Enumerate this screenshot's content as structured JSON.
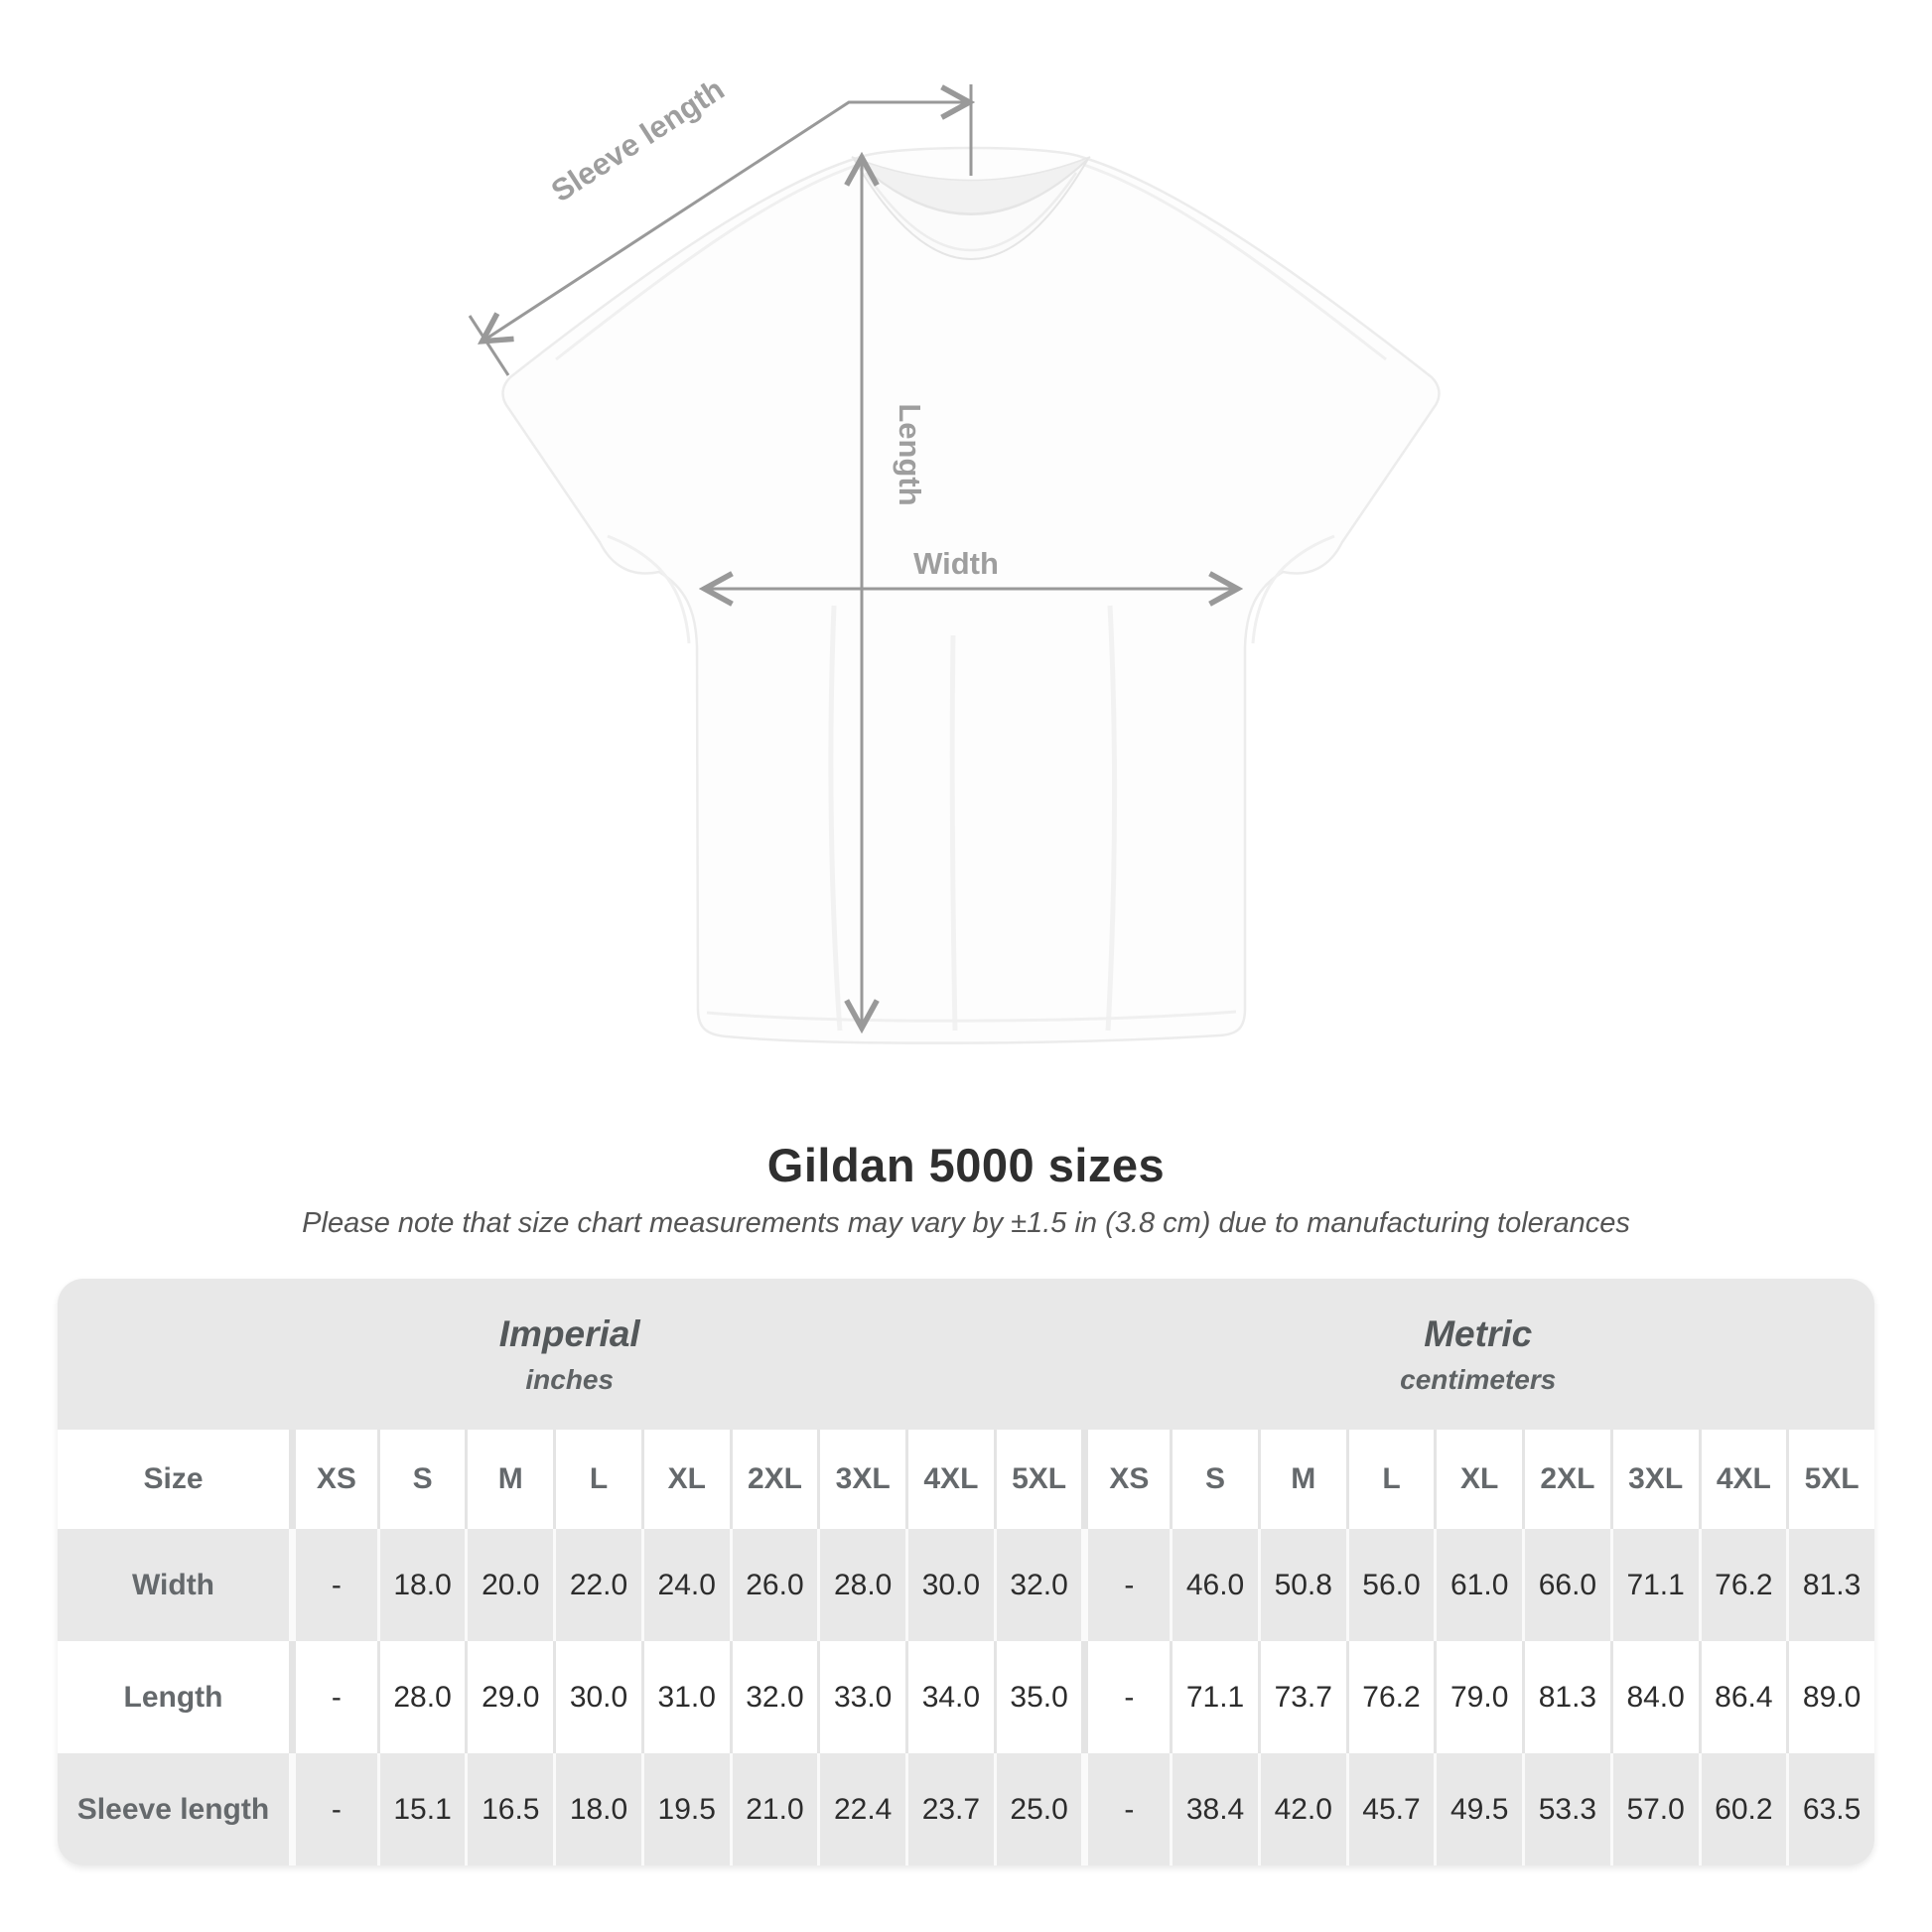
{
  "diagram": {
    "labels": {
      "sleeve_length": "Sleeve length",
      "length": "Length",
      "width": "Width"
    },
    "arrow_color": "#999999",
    "label_color": "#9e9e9e"
  },
  "header": {
    "title": "Gildan 5000 sizes",
    "subtitle": "Please note that size chart measurements may vary by ±1.5 in (3.8 cm) due to manufacturing tolerances"
  },
  "chart_data": {
    "type": "table",
    "title": "Gildan 5000 sizes",
    "note": "Please note that size chart measurements may vary by ±1.5 in (3.8 cm) due to manufacturing tolerances",
    "section_headers": [
      {
        "label": "Imperial",
        "unit": "inches"
      },
      {
        "label": "Metric",
        "unit": "centimeters"
      }
    ],
    "size_column_label": "Size",
    "sizes": [
      "XS",
      "S",
      "M",
      "L",
      "XL",
      "2XL",
      "3XL",
      "4XL",
      "5XL"
    ],
    "rows": [
      {
        "label": "Width",
        "imperial": [
          "-",
          "18.0",
          "20.0",
          "22.0",
          "24.0",
          "26.0",
          "28.0",
          "30.0",
          "32.0"
        ],
        "metric": [
          "-",
          "46.0",
          "50.8",
          "56.0",
          "61.0",
          "66.0",
          "71.1",
          "76.2",
          "81.3"
        ]
      },
      {
        "label": "Length",
        "imperial": [
          "-",
          "28.0",
          "29.0",
          "30.0",
          "31.0",
          "32.0",
          "33.0",
          "34.0",
          "35.0"
        ],
        "metric": [
          "-",
          "71.1",
          "73.7",
          "76.2",
          "79.0",
          "81.3",
          "84.0",
          "86.4",
          "89.0"
        ]
      },
      {
        "label": "Sleeve length",
        "imperial": [
          "-",
          "15.1",
          "16.5",
          "18.0",
          "19.5",
          "21.0",
          "22.4",
          "23.7",
          "25.0"
        ],
        "metric": [
          "-",
          "38.4",
          "42.0",
          "45.7",
          "49.5",
          "53.3",
          "57.0",
          "60.2",
          "63.5"
        ]
      }
    ],
    "layout": {
      "band_background": "#e8e8e8",
      "stripe_background": "#e8e8e8",
      "value_text_color": "#2c2c2c",
      "header_text_color": "#65696c",
      "grid": "vertical separators only, rounded outer corners"
    }
  }
}
